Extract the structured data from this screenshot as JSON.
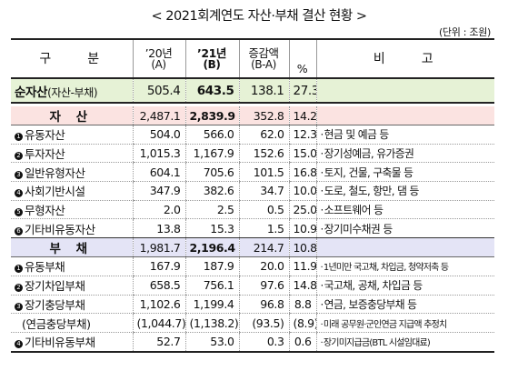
{
  "title": "< 2021회계연도 자산·부채 결산 현황 >",
  "unit": "(단위 : 조원)",
  "header": {
    "category": "구　　분",
    "y20": "’20년",
    "y20_sub": "(A)",
    "y21": "’21년",
    "y21_sub": "(B)",
    "diff": "증감액",
    "diff_sub": "(B-A)",
    "pct": "%",
    "note": "비　　고"
  },
  "net": {
    "label": "순자산",
    "paren": "(자산-부채)",
    "y20": "505.4",
    "y21": "643.5",
    "diff": "138.1",
    "pct": "27.3"
  },
  "asset": {
    "label": "자 산",
    "y20": "2,487.1",
    "y21": "2,839.9",
    "diff": "352.8",
    "pct": "14.2"
  },
  "asset_rows": [
    {
      "badge": "1",
      "label": "유동자산",
      "y20": "504.0",
      "y21": "566.0",
      "diff": "62.0",
      "pct": "12.3",
      "note": "현금 및 예금 등"
    },
    {
      "badge": "2",
      "label": "투자자산",
      "y20": "1,015.3",
      "y21": "1,167.9",
      "diff": "152.6",
      "pct": "15.0",
      "note": "장기성예금, 유가증권"
    },
    {
      "badge": "3",
      "label": "일반유형자산",
      "y20": "604.1",
      "y21": "705.6",
      "diff": "101.5",
      "pct": "16.8",
      "note": "토지, 건물, 구축물 등"
    },
    {
      "badge": "4",
      "label": "사회기반시설",
      "y20": "347.9",
      "y21": "382.6",
      "diff": "34.7",
      "pct": "10.0",
      "note": "도로, 철도, 항만, 댐 등"
    },
    {
      "badge": "5",
      "label": "무형자산",
      "y20": "2.0",
      "y21": "2.5",
      "diff": "0.5",
      "pct": "25.0",
      "note": "소프트웨어 등"
    },
    {
      "badge": "6",
      "label": "기타비유동자산",
      "y20": "13.8",
      "y21": "15.3",
      "diff": "1.5",
      "pct": "10.9",
      "note": "장기미수채권 등"
    }
  ],
  "liab": {
    "label": "부 채",
    "y20": "1,981.7",
    "y21": "2,196.4",
    "diff": "214.7",
    "pct": "10.8"
  },
  "liab_rows": [
    {
      "badge": "1",
      "label": "유동부채",
      "y20": "167.9",
      "y21": "187.9",
      "diff": "20.0",
      "pct": "11.9",
      "note": "1년미만 국고채, 차입금, 청약저축 등"
    },
    {
      "badge": "2",
      "label": "장기차입부채",
      "y20": "658.5",
      "y21": "756.1",
      "diff": "97.6",
      "pct": "14.8",
      "note": "국고채, 공채, 차입금 등"
    },
    {
      "badge": "3",
      "label": "장기충당부채",
      "y20": "1,102.6",
      "y21": "1,199.4",
      "diff": "96.8",
      "pct": "8.8",
      "note": "연금, 보증충당부채 등"
    },
    {
      "badge": "",
      "label": "(연금충당부채)",
      "y20": "(1,044.7)",
      "y21": "(1,138.2)",
      "diff": "(93.5)",
      "pct": "(8.9)",
      "note": "미래 공무원·군인연금 지급액 추정치"
    },
    {
      "badge": "4",
      "label": "기타비유동부채",
      "y20": "52.7",
      "y21": "53.0",
      "diff": "0.3",
      "pct": "0.6",
      "note": "장기미지급금(BTL 시설임대료)"
    }
  ]
}
